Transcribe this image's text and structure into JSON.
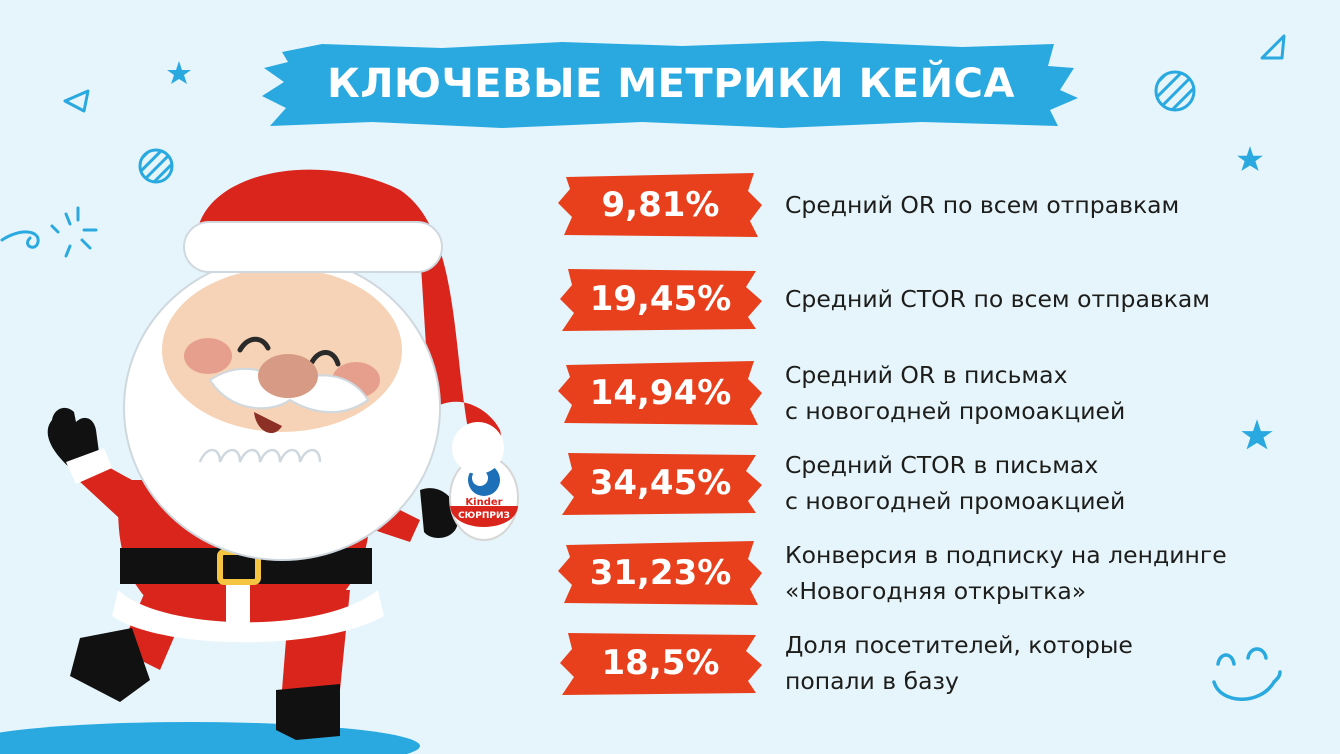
{
  "title": "КЛЮЧЕВЫЕ МЕТРИКИ КЕЙСА",
  "colors": {
    "background": "#e6f5fb",
    "banner": "#29a9e0",
    "badge": "#e8401c",
    "text": "#1d1d1b",
    "santa_red": "#d9251c"
  },
  "metrics": [
    {
      "value": "9,81%",
      "line1": "Средний OR по всем отправкам",
      "line2": ""
    },
    {
      "value": "19,45%",
      "line1": "Средний CTOR по всем отправкам",
      "line2": ""
    },
    {
      "value": "14,94%",
      "line1": "Средний OR в письмах",
      "line2": "с новогодней промоакцией"
    },
    {
      "value": "34,45%",
      "line1": "Средний CTOR в письмах",
      "line2": "с новогодней промоакцией"
    },
    {
      "value": "31,23%",
      "line1": "Конверсия в подписку на лендинге",
      "line2": "«Новогодняя открытка»"
    },
    {
      "value": "18,5%",
      "line1": "Доля посетителей, которые",
      "line2": "попали в базу"
    }
  ],
  "illustration": {
    "character": "santa-claus",
    "held_item": "kinder-surprise-egg",
    "egg_label_top": "Kinder",
    "egg_label_bottom": "СЮРПРИЗ"
  }
}
